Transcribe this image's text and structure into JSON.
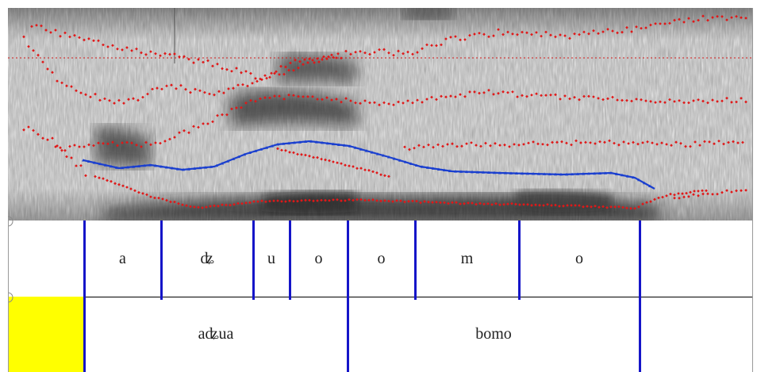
{
  "spectrogram": {
    "formant_color": "#e01818",
    "pitch_color": "#1a3fcf",
    "reference_line_color": "#d21a1a"
  },
  "tiers": {
    "boundary_color": "#1515c8",
    "highlight_color": "#ffff00",
    "phones": [
      {
        "label": "a"
      },
      {
        "label": "ʥ"
      },
      {
        "label": "u"
      },
      {
        "label": "o"
      },
      {
        "label": "o"
      },
      {
        "label": "m"
      },
      {
        "label": "o"
      }
    ],
    "words": [
      {
        "label": "aʥua"
      },
      {
        "label": "bomo"
      }
    ]
  }
}
